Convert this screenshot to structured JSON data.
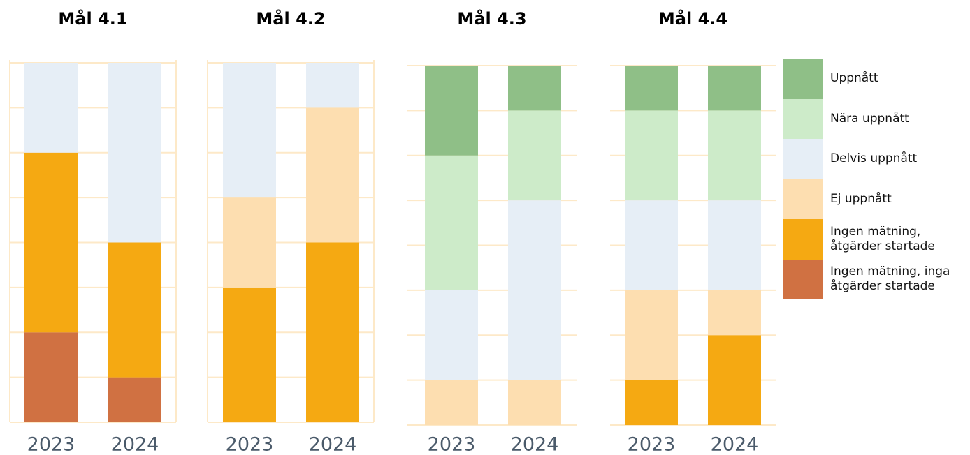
{
  "chart_data": [
    {
      "type": "bar",
      "title": "Mål 4.1",
      "categories": [
        "2023",
        "2024"
      ],
      "ylim": [
        0,
        8
      ],
      "yticks": [
        0,
        1,
        2,
        3,
        4,
        5,
        6,
        7,
        8
      ],
      "grid": true,
      "series": [
        {
          "name": "Uppnått",
          "color": "#8fbf87",
          "values": [
            0,
            0
          ]
        },
        {
          "name": "Nära uppnått",
          "color": "#cdebc9",
          "values": [
            0,
            0
          ]
        },
        {
          "name": "Delvis uppnått",
          "color": "#e6eef6",
          "values": [
            2,
            4
          ]
        },
        {
          "name": "Ej uppnått",
          "color": "#fddeb0",
          "values": [
            0,
            0
          ]
        },
        {
          "name": "Ingen mätning, åtgärder startade",
          "color": "#f5a912",
          "values": [
            4,
            3
          ]
        },
        {
          "name": "Ingen mätning, inga åtgärder startade",
          "color": "#d07142",
          "values": [
            2,
            1
          ]
        }
      ]
    },
    {
      "type": "bar",
      "title": "Mål 4.2",
      "categories": [
        "2023",
        "2024"
      ],
      "ylim": [
        0,
        8
      ],
      "yticks": [
        0,
        1,
        2,
        3,
        4,
        5,
        6,
        7,
        8
      ],
      "grid": true,
      "series": [
        {
          "name": "Uppnått",
          "color": "#8fbf87",
          "values": [
            0,
            0
          ]
        },
        {
          "name": "Nära uppnått",
          "color": "#cdebc9",
          "values": [
            0,
            0
          ]
        },
        {
          "name": "Delvis uppnått",
          "color": "#e6eef6",
          "values": [
            3,
            1
          ]
        },
        {
          "name": "Ej uppnått",
          "color": "#fddeb0",
          "values": [
            2,
            3
          ]
        },
        {
          "name": "Ingen mätning, åtgärder startade",
          "color": "#f5a912",
          "values": [
            3,
            4
          ]
        },
        {
          "name": "Ingen mätning, inga åtgärder startade",
          "color": "#d07142",
          "values": [
            0,
            0
          ]
        }
      ]
    },
    {
      "type": "bar",
      "title": "Mål 4.3",
      "categories": [
        "2023",
        "2024"
      ],
      "ylim": [
        0,
        8
      ],
      "yticks": [
        0,
        1,
        2,
        3,
        4,
        5,
        6,
        7,
        8
      ],
      "grid": true,
      "series": [
        {
          "name": "Uppnått",
          "color": "#8fbf87",
          "values": [
            2,
            1
          ]
        },
        {
          "name": "Nära uppnått",
          "color": "#cdebc9",
          "values": [
            3,
            2
          ]
        },
        {
          "name": "Delvis uppnått",
          "color": "#e6eef6",
          "values": [
            2,
            4
          ]
        },
        {
          "name": "Ej uppnått",
          "color": "#fddeb0",
          "values": [
            1,
            1
          ]
        },
        {
          "name": "Ingen mätning, åtgärder startade",
          "color": "#f5a912",
          "values": [
            0,
            0
          ]
        },
        {
          "name": "Ingen mätning, inga åtgärder startade",
          "color": "#d07142",
          "values": [
            0,
            0
          ]
        }
      ]
    },
    {
      "type": "bar",
      "title": "Mål 4.4",
      "categories": [
        "2023",
        "2024"
      ],
      "ylim": [
        0,
        8
      ],
      "yticks": [
        0,
        1,
        2,
        3,
        4,
        5,
        6,
        7,
        8
      ],
      "grid": true,
      "series": [
        {
          "name": "Uppnått",
          "color": "#8fbf87",
          "values": [
            1,
            1
          ]
        },
        {
          "name": "Nära uppnått",
          "color": "#cdebc9",
          "values": [
            2,
            2
          ]
        },
        {
          "name": "Delvis uppnått",
          "color": "#e6eef6",
          "values": [
            2,
            2
          ]
        },
        {
          "name": "Ej uppnått",
          "color": "#fddeb0",
          "values": [
            2,
            1
          ]
        },
        {
          "name": "Ingen mätning, åtgärder startade",
          "color": "#f5a912",
          "values": [
            1,
            2
          ]
        },
        {
          "name": "Ingen mätning, inga åtgärder startade",
          "color": "#d07142",
          "values": [
            0,
            0
          ]
        }
      ]
    }
  ]
}
